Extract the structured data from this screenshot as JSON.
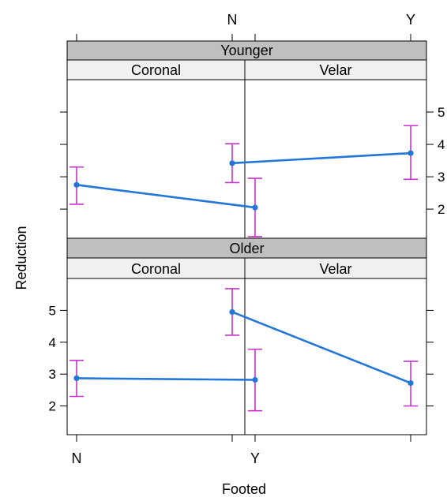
{
  "chart_data": {
    "type": "line",
    "xlabel": "Footed",
    "ylabel": "Reduction",
    "x_categories": [
      "N",
      "Y"
    ],
    "y_range": [
      1.1,
      6.0
    ],
    "y_ticks": [
      2,
      3,
      4,
      5
    ],
    "colors": {
      "line": "#2176d8",
      "error_bar": "#cc33cc",
      "strip_dark": "#bfbfbf",
      "strip_light": "#f0f0f0"
    },
    "panels": [
      {
        "row": "Younger",
        "col": "Coronal",
        "points": [
          {
            "x": "N",
            "y": 2.75,
            "lower": 2.15,
            "upper": 3.3
          },
          {
            "x": "Y",
            "y": 2.05,
            "lower": 1.15,
            "upper": 2.95
          }
        ]
      },
      {
        "row": "Younger",
        "col": "Velar",
        "points": [
          {
            "x": "N",
            "y": 3.42,
            "lower": 2.82,
            "upper": 4.02
          },
          {
            "x": "Y",
            "y": 3.73,
            "lower": 2.92,
            "upper": 4.58
          }
        ]
      },
      {
        "row": "Older",
        "col": "Coronal",
        "points": [
          {
            "x": "N",
            "y": 2.87,
            "lower": 2.3,
            "upper": 3.43
          },
          {
            "x": "Y",
            "y": 2.82,
            "lower": 1.85,
            "upper": 3.78
          }
        ]
      },
      {
        "row": "Older",
        "col": "Velar",
        "points": [
          {
            "x": "N",
            "y": 4.95,
            "lower": 4.22,
            "upper": 5.68
          },
          {
            "x": "Y",
            "y": 2.72,
            "lower": 2.0,
            "upper": 3.4
          }
        ]
      }
    ]
  }
}
